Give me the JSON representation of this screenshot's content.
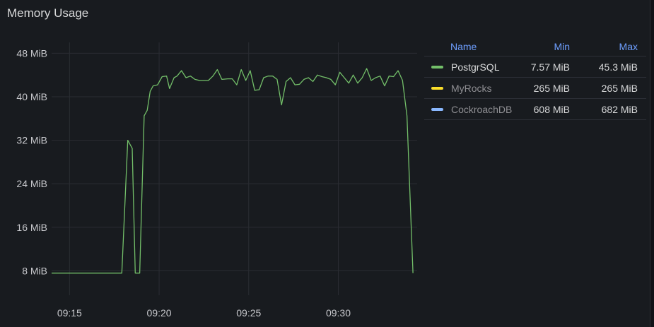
{
  "panel": {
    "title": "Memory Usage"
  },
  "legend": {
    "headers": {
      "name": "Name",
      "min": "Min",
      "max": "Max"
    },
    "rows": [
      {
        "name": "PostgrSQL",
        "min": "7.57 MiB",
        "max": "45.3 MiB",
        "color": "#73bf69",
        "dimmed": false
      },
      {
        "name": "MyRocks",
        "min": "265 MiB",
        "max": "265 MiB",
        "color": "#fade2a",
        "dimmed": true
      },
      {
        "name": "CockroachDB",
        "min": "608 MiB",
        "max": "682 MiB",
        "color": "#8ab8ff",
        "dimmed": true
      }
    ]
  },
  "chart_data": {
    "type": "line",
    "title": "Memory Usage",
    "y_unit": "MiB",
    "ylim": [
      3.5,
      50
    ],
    "y_ticks": [
      8,
      16,
      24,
      32,
      40,
      48
    ],
    "y_tick_labels": [
      "8 MiB",
      "16 MiB",
      "24 MiB",
      "32 MiB",
      "40 MiB",
      "48 MiB"
    ],
    "xlim": [
      "09:14",
      "09:34.4"
    ],
    "x_ticks": [
      "09:15",
      "09:20",
      "09:25",
      "09:30"
    ],
    "grid": true,
    "legend_position": "right",
    "series": [
      {
        "name": "PostgrSQL",
        "color": "#73bf69",
        "points": [
          [
            "09:14:00",
            7.57
          ],
          [
            "09:17:55",
            7.57
          ],
          [
            "09:18:15",
            32
          ],
          [
            "09:18:30",
            30.5
          ],
          [
            "09:18:40",
            7.57
          ],
          [
            "09:18:55",
            7.57
          ],
          [
            "09:19:10",
            36.5
          ],
          [
            "09:19:20",
            37.5
          ],
          [
            "09:19:30",
            41
          ],
          [
            "09:19:40",
            42
          ],
          [
            "09:19:55",
            42.2
          ],
          [
            "09:20:10",
            43.7
          ],
          [
            "09:20:25",
            43.8
          ],
          [
            "09:20:35",
            41.5
          ],
          [
            "09:20:50",
            43.5
          ],
          [
            "09:21:00",
            43.8
          ],
          [
            "09:21:15",
            44.8
          ],
          [
            "09:21:30",
            43.5
          ],
          [
            "09:21:45",
            43.8
          ],
          [
            "09:22:00",
            43.2
          ],
          [
            "09:22:15",
            43
          ],
          [
            "09:22:30",
            43
          ],
          [
            "09:22:45",
            43
          ],
          [
            "09:23:00",
            43.8
          ],
          [
            "09:23:15",
            45
          ],
          [
            "09:23:30",
            43.2
          ],
          [
            "09:23:50",
            43.3
          ],
          [
            "09:24:05",
            43.3
          ],
          [
            "09:24:20",
            42.2
          ],
          [
            "09:24:35",
            45
          ],
          [
            "09:24:50",
            43
          ],
          [
            "09:25:05",
            44.8
          ],
          [
            "09:25:20",
            41.2
          ],
          [
            "09:25:35",
            41.3
          ],
          [
            "09:25:50",
            43.5
          ],
          [
            "09:26:05",
            43.8
          ],
          [
            "09:26:20",
            43.8
          ],
          [
            "09:26:35",
            43.2
          ],
          [
            "09:26:50",
            38.5
          ],
          [
            "09:27:05",
            42.8
          ],
          [
            "09:27:20",
            43.5
          ],
          [
            "09:27:35",
            42.2
          ],
          [
            "09:27:50",
            42.3
          ],
          [
            "09:28:05",
            43.2
          ],
          [
            "09:28:20",
            43.5
          ],
          [
            "09:28:35",
            42.8
          ],
          [
            "09:28:50",
            44
          ],
          [
            "09:29:05",
            43.7
          ],
          [
            "09:29:20",
            43.5
          ],
          [
            "09:29:35",
            43.2
          ],
          [
            "09:29:50",
            42.2
          ],
          [
            "09:30:05",
            44.5
          ],
          [
            "09:30:20",
            43.5
          ],
          [
            "09:30:35",
            42.5
          ],
          [
            "09:30:50",
            44
          ],
          [
            "09:31:05",
            42.5
          ],
          [
            "09:31:20",
            43.5
          ],
          [
            "09:31:35",
            45.2
          ],
          [
            "09:31:50",
            43
          ],
          [
            "09:32:05",
            43.5
          ],
          [
            "09:32:20",
            43.8
          ],
          [
            "09:32:35",
            42
          ],
          [
            "09:32:50",
            43.8
          ],
          [
            "09:33:05",
            43.7
          ],
          [
            "09:33:20",
            44.8
          ],
          [
            "09:33:35",
            43
          ],
          [
            "09:33:50",
            36.5
          ],
          [
            "09:34:10",
            7.57
          ]
        ]
      }
    ]
  }
}
